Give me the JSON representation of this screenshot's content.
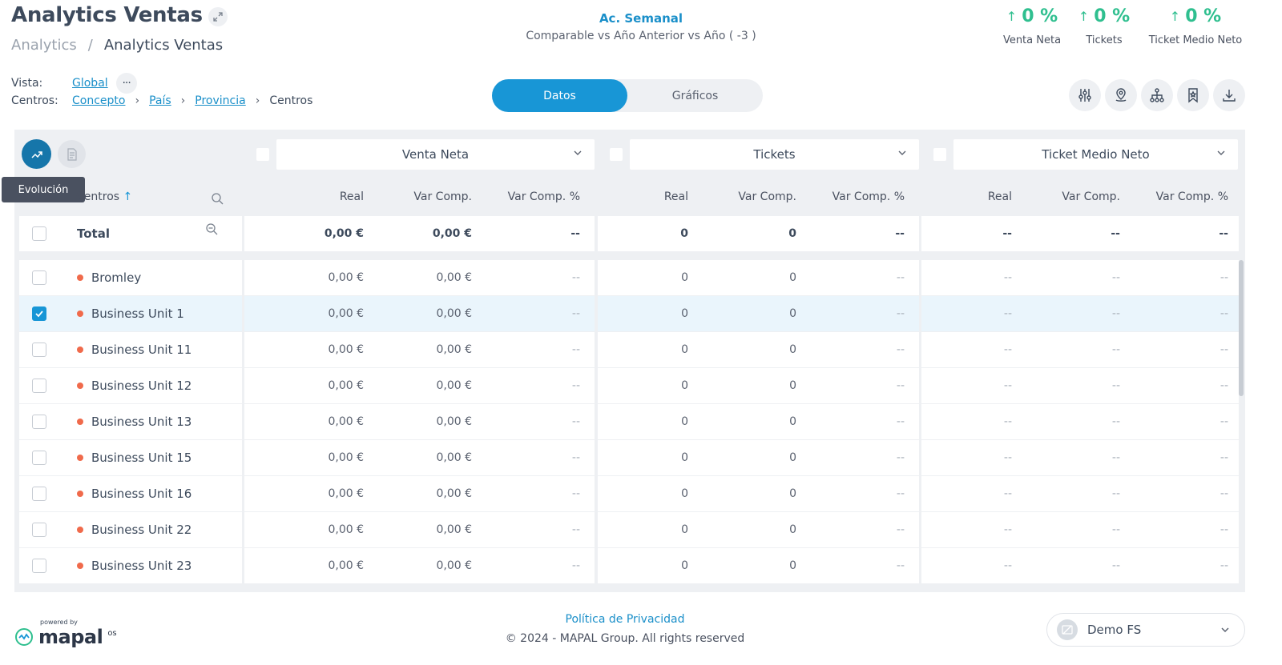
{
  "header": {
    "title": "Analytics Ventas",
    "breadcrumb": {
      "parent": "Analytics",
      "separator": "/",
      "current": "Analytics Ventas"
    },
    "period_title": "Ac. Semanal",
    "period_subtitle": "Comparable vs Año Anterior vs Año ( -3 )",
    "kpis": [
      {
        "value": "0 %",
        "label": "Venta Neta",
        "trend": "up"
      },
      {
        "value": "0 %",
        "label": "Tickets",
        "trend": "up"
      },
      {
        "value": "0 %",
        "label": "Ticket Medio Neto",
        "trend": "up"
      }
    ]
  },
  "filters": {
    "vista_label": "Vista:",
    "vista_value": "Global",
    "more": "···",
    "centros_label": "Centros:",
    "path": [
      "Concepto",
      "País",
      "Provincia"
    ],
    "path_current": "Centros"
  },
  "view_toggle": {
    "options": [
      "Datos",
      "Gráficos"
    ],
    "active": "Datos"
  },
  "toolbar_icons": [
    "filters-sliders-icon",
    "location-pin-icon",
    "hierarchy-icon",
    "bookmark-icon",
    "download-icon"
  ],
  "table": {
    "tooltip": "Evolución",
    "metric_selectors": [
      "Venta Neta",
      "Tickets",
      "Ticket Medio Neto"
    ],
    "name_header": "Centros",
    "sub_headers": [
      "Real",
      "Var Comp.",
      "Var Comp. %"
    ],
    "total": {
      "label": "Total",
      "values": [
        "0,00 €",
        "0,00 €",
        "--",
        "0",
        "0",
        "--",
        "--",
        "--",
        "--"
      ]
    },
    "rows": [
      {
        "name": "Bromley",
        "checked": false,
        "values": [
          "0,00 €",
          "0,00 €",
          "--",
          "0",
          "0",
          "--",
          "--",
          "--",
          "--"
        ]
      },
      {
        "name": "Business Unit 1",
        "checked": true,
        "values": [
          "0,00 €",
          "0,00 €",
          "--",
          "0",
          "0",
          "--",
          "--",
          "--",
          "--"
        ]
      },
      {
        "name": "Business Unit 11",
        "checked": false,
        "values": [
          "0,00 €",
          "0,00 €",
          "--",
          "0",
          "0",
          "--",
          "--",
          "--",
          "--"
        ]
      },
      {
        "name": "Business Unit 12",
        "checked": false,
        "values": [
          "0,00 €",
          "0,00 €",
          "--",
          "0",
          "0",
          "--",
          "--",
          "--",
          "--"
        ]
      },
      {
        "name": "Business Unit 13",
        "checked": false,
        "values": [
          "0,00 €",
          "0,00 €",
          "--",
          "0",
          "0",
          "--",
          "--",
          "--",
          "--"
        ]
      },
      {
        "name": "Business Unit 15",
        "checked": false,
        "values": [
          "0,00 €",
          "0,00 €",
          "--",
          "0",
          "0",
          "--",
          "--",
          "--",
          "--"
        ]
      },
      {
        "name": "Business Unit 16",
        "checked": false,
        "values": [
          "0,00 €",
          "0,00 €",
          "--",
          "0",
          "0",
          "--",
          "--",
          "--",
          "--"
        ]
      },
      {
        "name": "Business Unit 22",
        "checked": false,
        "values": [
          "0,00 €",
          "0,00 €",
          "--",
          "0",
          "0",
          "--",
          "--",
          "--",
          "--"
        ]
      },
      {
        "name": "Business Unit 23",
        "checked": false,
        "values": [
          "0,00 €",
          "0,00 €",
          "--",
          "0",
          "0",
          "--",
          "--",
          "--",
          "--"
        ]
      }
    ]
  },
  "footer": {
    "powered_by": "powered by",
    "logo_text": "mapal",
    "logo_suffix": "os",
    "privacy": "Política de Privacidad",
    "copyright": "© 2024 - MAPAL Group. All rights reserved",
    "company": "Demo FS"
  },
  "colors": {
    "accent": "#1896d6",
    "positive": "#2fbf8f",
    "status_dot": "#f06a4b",
    "panel_bg": "#eef0f3"
  }
}
